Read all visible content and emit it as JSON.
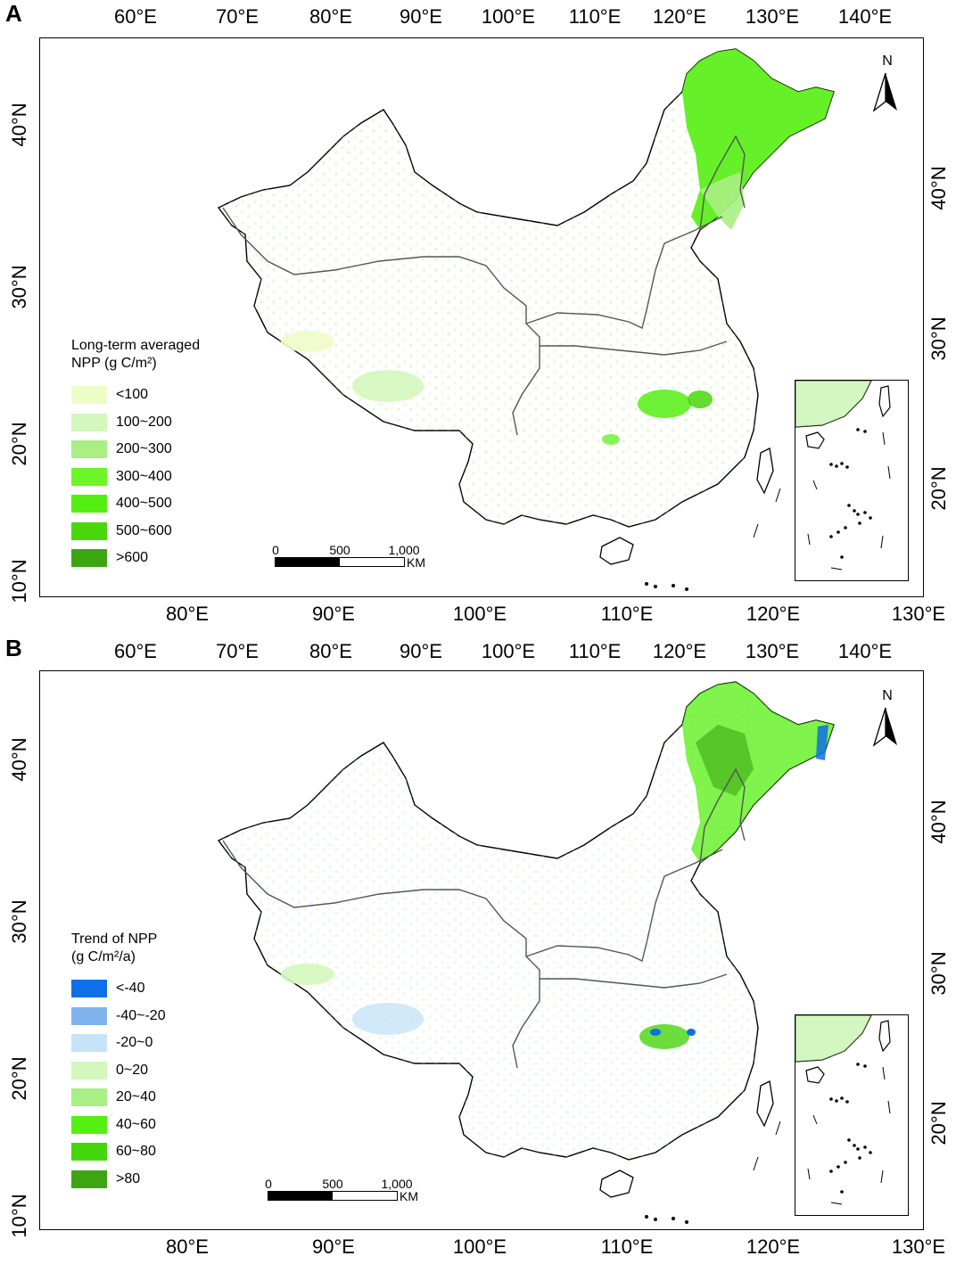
{
  "panels": [
    {
      "letter": "A",
      "top_ticks": [
        "60°E",
        "70°E",
        "80°E",
        "90°E",
        "100°E",
        "110°E",
        "120°E",
        "130°E",
        "140°E"
      ],
      "bottom_ticks": [
        "80°E",
        "90°E",
        "100°E",
        "110°E",
        "120°E",
        "130°E"
      ],
      "left_ticks": [
        "40°N",
        "30°N",
        "20°N",
        "10°N"
      ],
      "right_ticks": [
        "40°N",
        "30°N",
        "20°N"
      ],
      "legend": {
        "title_line1": "Long-term averaged",
        "title_line2": "NPP (g C/m²)",
        "items": [
          {
            "label": "<100",
            "color": "#eefcc8"
          },
          {
            "label": "100~200",
            "color": "#d4f7bd"
          },
          {
            "label": "200~300",
            "color": "#a9ef83"
          },
          {
            "label": "300~400",
            "color": "#6cf527"
          },
          {
            "label": "400~500",
            "color": "#55ee12"
          },
          {
            "label": "500~600",
            "color": "#4ad70a"
          },
          {
            "label": ">600",
            "color": "#3ca612"
          }
        ]
      },
      "scalebar": {
        "l0": "0",
        "l1": "500",
        "l2": "1,000",
        "unit": "KM"
      },
      "north": "N"
    },
    {
      "letter": "B",
      "top_ticks": [
        "60°E",
        "70°E",
        "80°E",
        "90°E",
        "100°E",
        "110°E",
        "120°E",
        "130°E",
        "140°E"
      ],
      "bottom_ticks": [
        "80°E",
        "90°E",
        "100°E",
        "110°E",
        "120°E",
        "130°E"
      ],
      "left_ticks": [
        "40°N",
        "30°N",
        "20°N",
        "10°N"
      ],
      "right_ticks": [
        "40°N",
        "30°N",
        "20°N"
      ],
      "legend": {
        "title_line1": "Trend of NPP",
        "title_line2": "(g C/m²/a)",
        "items": [
          {
            "label": "<-40",
            "color": "#0f6fe8"
          },
          {
            "label": "-40~-20",
            "color": "#7fb3ef"
          },
          {
            "label": "-20~0",
            "color": "#c6e3f8"
          },
          {
            "label": "0~20",
            "color": "#d4f7bd"
          },
          {
            "label": "20~40",
            "color": "#a9ef83"
          },
          {
            "label": "40~60",
            "color": "#55f012"
          },
          {
            "label": "60~80",
            "color": "#46d60c"
          },
          {
            "label": ">80",
            "color": "#3ca612"
          }
        ]
      },
      "scalebar": {
        "l0": "0",
        "l1": "500",
        "l2": "1,000",
        "unit": "KM"
      },
      "north": "N"
    }
  ]
}
